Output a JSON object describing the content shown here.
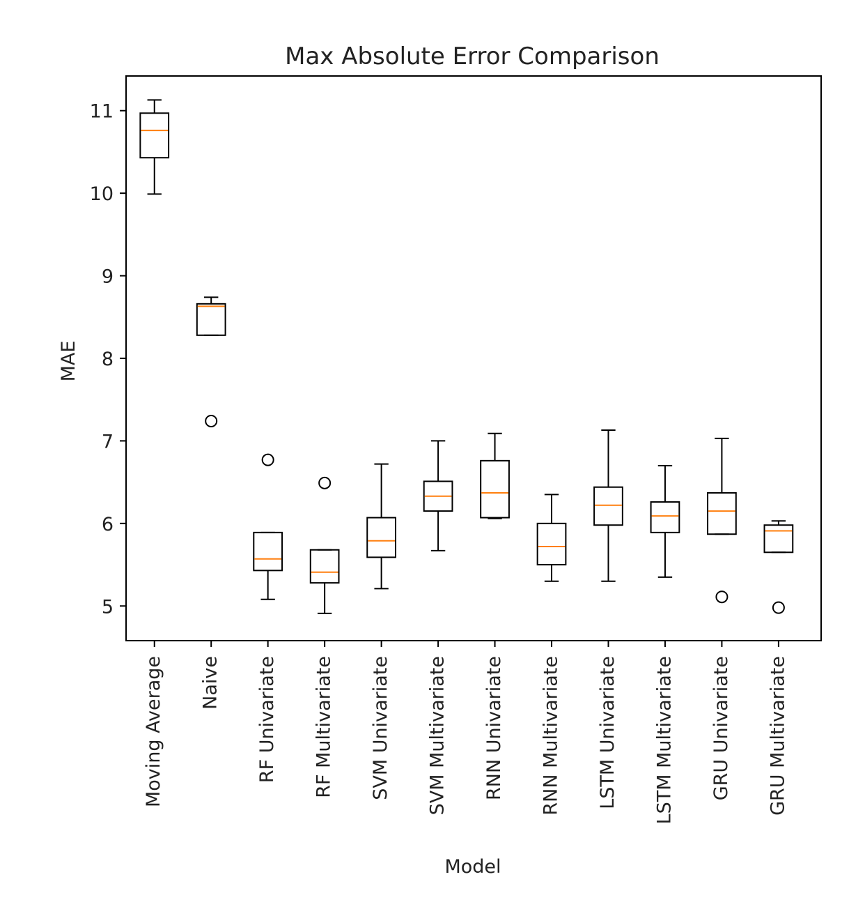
{
  "chart_data": {
    "type": "box",
    "title": "Max Absolute Error Comparison",
    "xlabel": "Model",
    "ylabel": "MAE",
    "ylim": [
      4.58,
      11.42
    ],
    "yticks": [
      5,
      6,
      7,
      8,
      9,
      10,
      11
    ],
    "grid": false,
    "categories": [
      "Moving Average",
      "Naive",
      "RF Univariate",
      "RF Multivariate",
      "SVM Univariate",
      "SVM Multivariate",
      "RNN Univariate",
      "RNN Multivariate",
      "LSTM Univariate",
      "LSTM Multivariate",
      "GRU Univariate",
      "GRU Multivariate"
    ],
    "boxes": [
      {
        "whisker_low": 9.99,
        "q1": 10.43,
        "median": 10.76,
        "q3": 10.97,
        "whisker_high": 11.13,
        "outliers": []
      },
      {
        "whisker_low": 8.28,
        "q1": 8.28,
        "median": 8.63,
        "q3": 8.66,
        "whisker_high": 8.74,
        "outliers": [
          7.24
        ]
      },
      {
        "whisker_low": 5.08,
        "q1": 5.43,
        "median": 5.57,
        "q3": 5.89,
        "whisker_high": 5.89,
        "outliers": [
          6.77
        ]
      },
      {
        "whisker_low": 4.91,
        "q1": 5.28,
        "median": 5.41,
        "q3": 5.68,
        "whisker_high": 5.68,
        "outliers": [
          6.49
        ]
      },
      {
        "whisker_low": 5.21,
        "q1": 5.59,
        "median": 5.79,
        "q3": 6.07,
        "whisker_high": 6.72,
        "outliers": []
      },
      {
        "whisker_low": 5.67,
        "q1": 6.15,
        "median": 6.33,
        "q3": 6.51,
        "whisker_high": 7.0,
        "outliers": []
      },
      {
        "whisker_low": 6.06,
        "q1": 6.07,
        "median": 6.37,
        "q3": 6.76,
        "whisker_high": 7.09,
        "outliers": []
      },
      {
        "whisker_low": 5.3,
        "q1": 5.5,
        "median": 5.72,
        "q3": 6.0,
        "whisker_high": 6.35,
        "outliers": []
      },
      {
        "whisker_low": 5.3,
        "q1": 5.98,
        "median": 6.22,
        "q3": 6.44,
        "whisker_high": 7.13,
        "outliers": []
      },
      {
        "whisker_low": 5.35,
        "q1": 5.89,
        "median": 6.09,
        "q3": 6.26,
        "whisker_high": 6.7,
        "outliers": []
      },
      {
        "whisker_low": 5.87,
        "q1": 5.87,
        "median": 6.15,
        "q3": 6.37,
        "whisker_high": 7.03,
        "outliers": [
          5.11
        ]
      },
      {
        "whisker_low": 5.65,
        "q1": 5.65,
        "median": 5.91,
        "q3": 5.98,
        "whisker_high": 6.03,
        "outliers": [
          4.98
        ]
      }
    ],
    "colors": {
      "box": "#000000",
      "median": "#ff7f0e",
      "axes": "#000000",
      "text": "#222222"
    }
  }
}
